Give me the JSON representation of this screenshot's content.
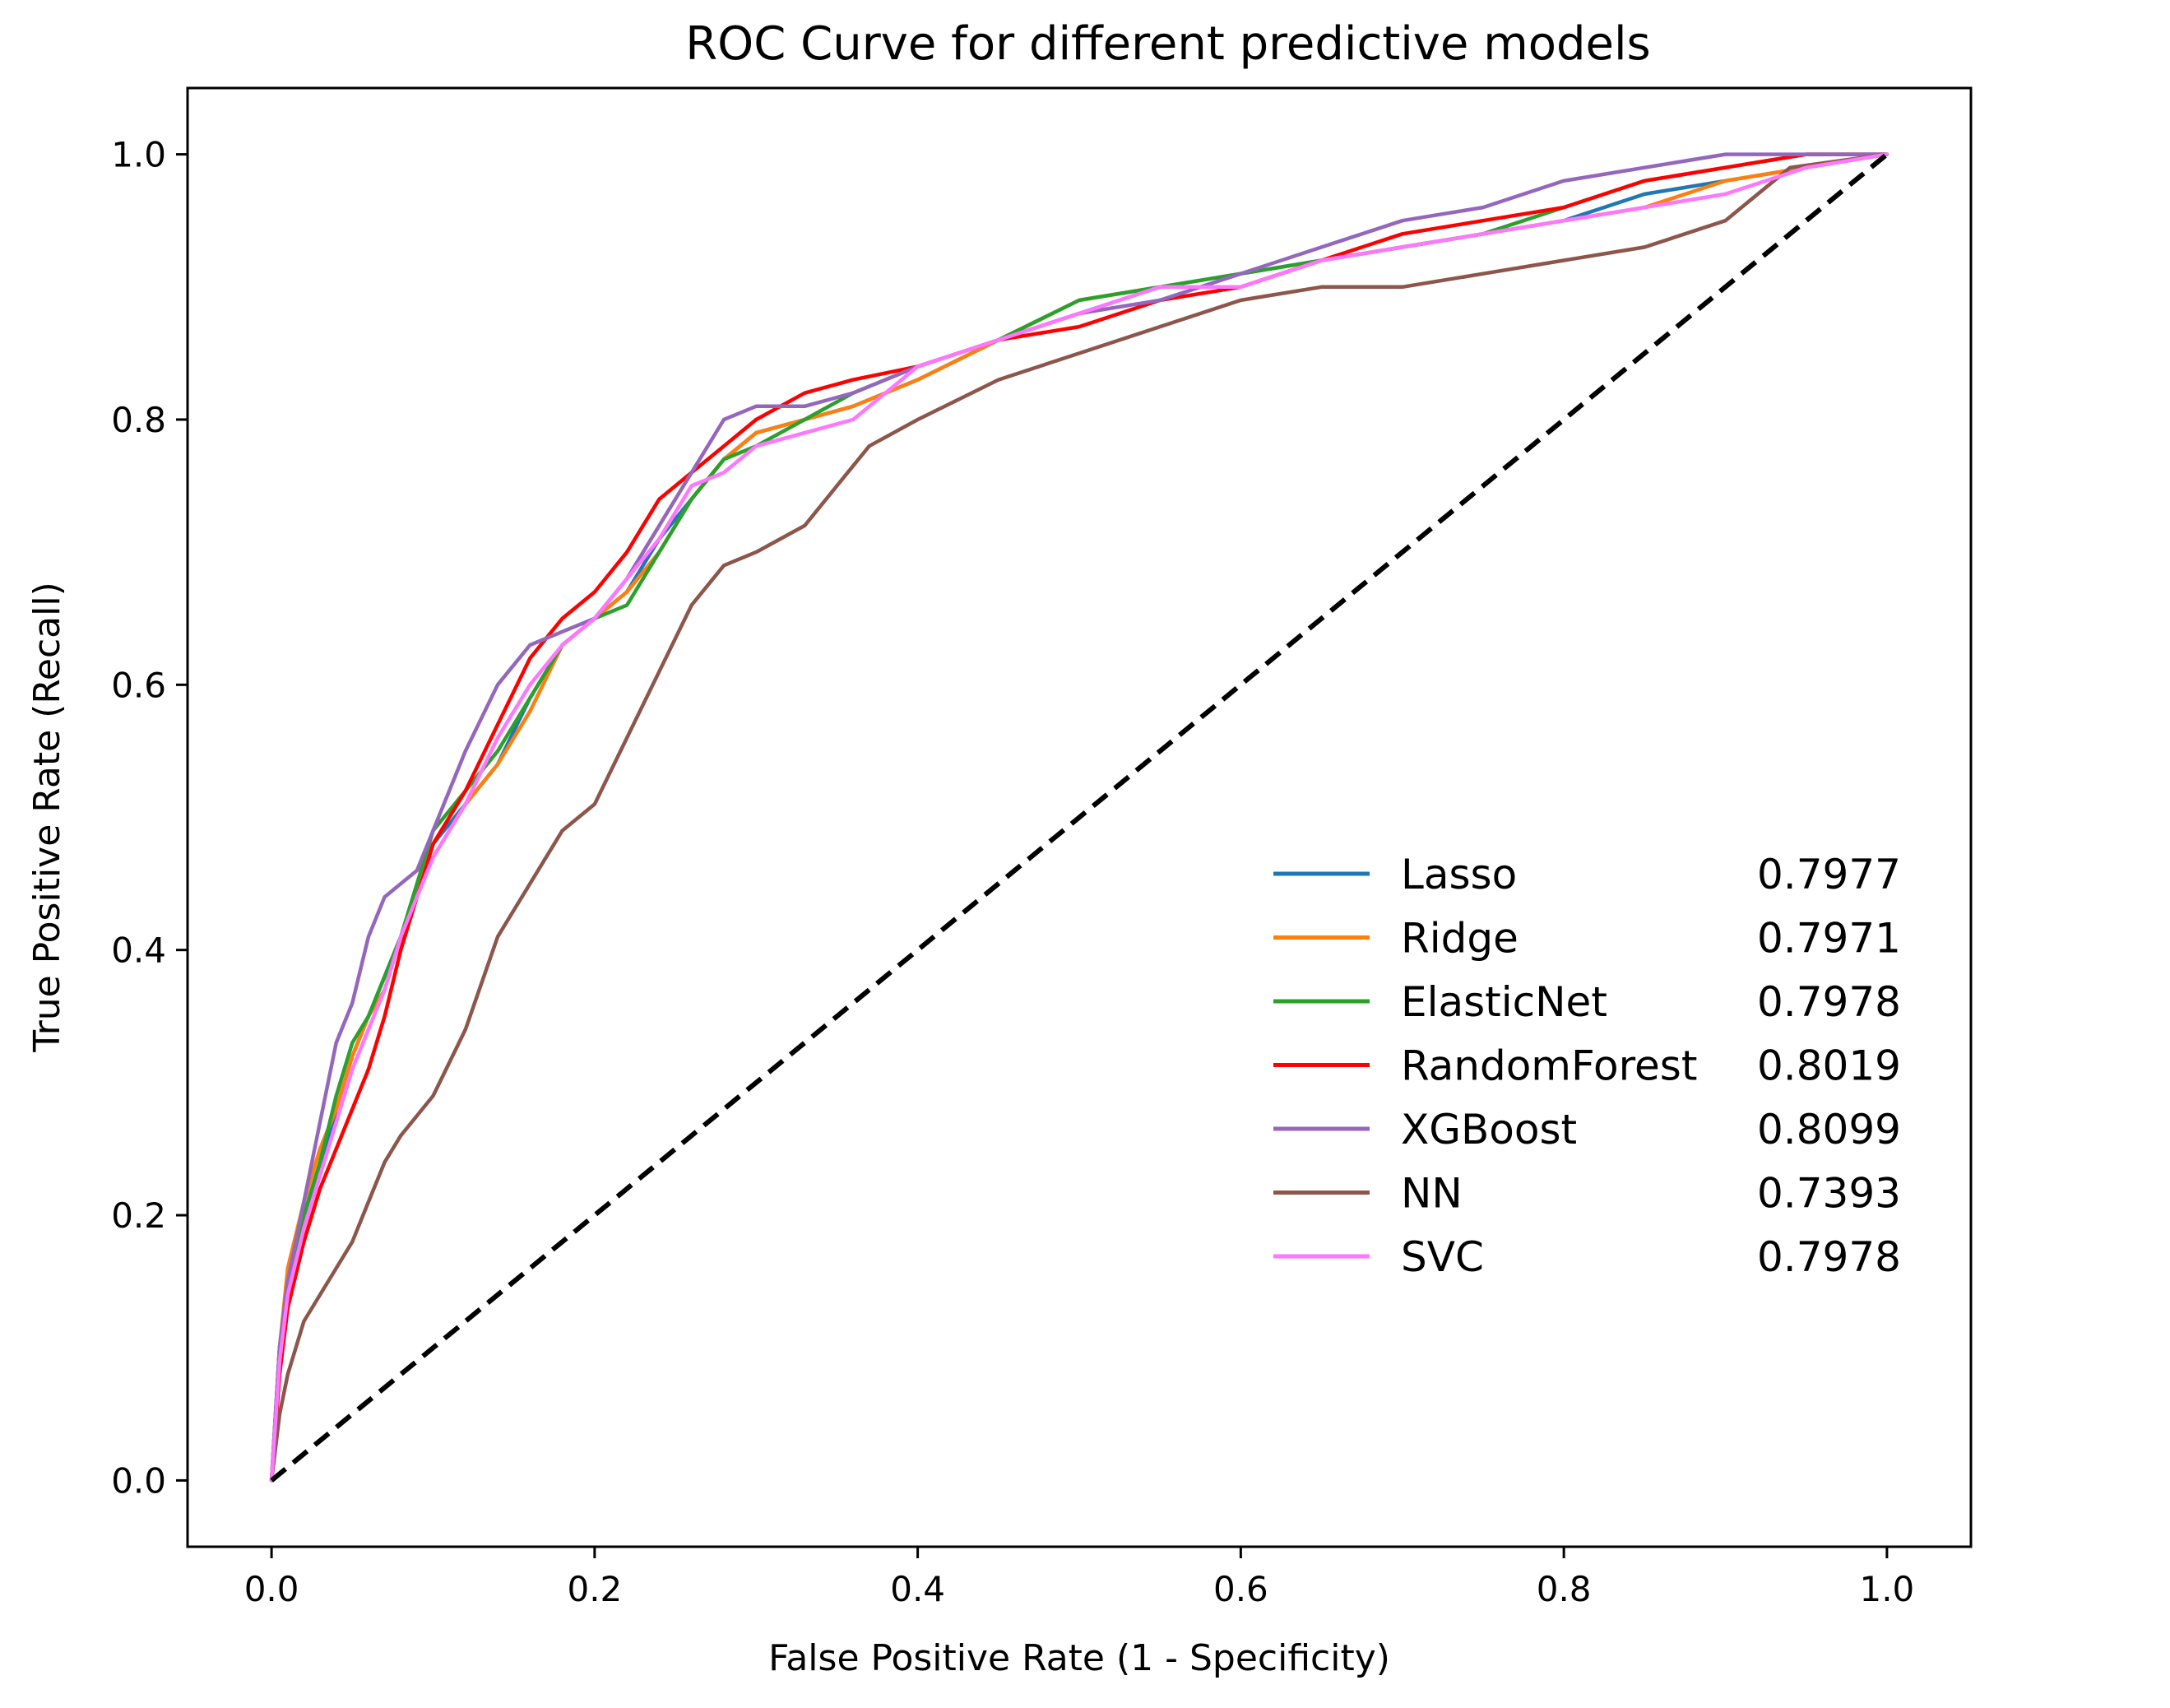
{
  "chart_data": {
    "type": "line",
    "title": "ROC Curve for different predictive models",
    "xlabel": "False Positive Rate (1 - Specificity)",
    "ylabel": "True Positive Rate (Recall)",
    "xlim": [
      -0.052,
      1.052
    ],
    "ylim": [
      -0.05,
      1.05
    ],
    "xticks": [
      "0.0",
      "0.2",
      "0.4",
      "0.6",
      "0.8",
      "1.0"
    ],
    "yticks": [
      "0.0",
      "0.2",
      "0.4",
      "0.6",
      "0.8",
      "1.0"
    ],
    "legend_position": "center-right",
    "baseline": {
      "name": "chance",
      "color": "#000000",
      "style": "dashed",
      "x": [
        0,
        1
      ],
      "y": [
        0,
        1
      ]
    },
    "series": [
      {
        "name": "Lasso",
        "auc": "0.7977",
        "color": "#1f77b4",
        "x": [
          0,
          0.005,
          0.01,
          0.02,
          0.03,
          0.04,
          0.05,
          0.06,
          0.07,
          0.08,
          0.09,
          0.1,
          0.12,
          0.14,
          0.16,
          0.18,
          0.2,
          0.22,
          0.24,
          0.26,
          0.28,
          0.3,
          0.33,
          0.36,
          0.4,
          0.45,
          0.5,
          0.55,
          0.6,
          0.65,
          0.7,
          0.75,
          0.8,
          0.85,
          0.9,
          0.95,
          1.0
        ],
        "y": [
          0,
          0.1,
          0.15,
          0.2,
          0.23,
          0.28,
          0.32,
          0.35,
          0.38,
          0.41,
          0.44,
          0.48,
          0.51,
          0.54,
          0.59,
          0.63,
          0.65,
          0.67,
          0.71,
          0.74,
          0.77,
          0.79,
          0.8,
          0.81,
          0.83,
          0.86,
          0.88,
          0.9,
          0.91,
          0.92,
          0.93,
          0.94,
          0.95,
          0.97,
          0.98,
          0.99,
          1.0
        ]
      },
      {
        "name": "Ridge",
        "auc": "0.7971",
        "color": "#ff7f0e",
        "x": [
          0,
          0.005,
          0.01,
          0.02,
          0.03,
          0.04,
          0.05,
          0.06,
          0.07,
          0.08,
          0.09,
          0.1,
          0.12,
          0.14,
          0.16,
          0.18,
          0.2,
          0.22,
          0.24,
          0.26,
          0.28,
          0.3,
          0.33,
          0.36,
          0.4,
          0.45,
          0.5,
          0.55,
          0.6,
          0.65,
          0.7,
          0.75,
          0.8,
          0.85,
          0.9,
          0.95,
          1.0
        ],
        "y": [
          0,
          0.1,
          0.16,
          0.21,
          0.25,
          0.28,
          0.32,
          0.35,
          0.37,
          0.41,
          0.44,
          0.47,
          0.51,
          0.54,
          0.58,
          0.63,
          0.65,
          0.67,
          0.7,
          0.74,
          0.77,
          0.79,
          0.8,
          0.81,
          0.83,
          0.86,
          0.89,
          0.9,
          0.9,
          0.92,
          0.93,
          0.94,
          0.95,
          0.96,
          0.98,
          0.99,
          1.0
        ]
      },
      {
        "name": "ElasticNet",
        "auc": "0.7978",
        "color": "#2ca02c",
        "x": [
          0,
          0.005,
          0.01,
          0.02,
          0.03,
          0.04,
          0.05,
          0.06,
          0.07,
          0.08,
          0.09,
          0.1,
          0.12,
          0.14,
          0.16,
          0.18,
          0.2,
          0.22,
          0.24,
          0.26,
          0.28,
          0.3,
          0.33,
          0.36,
          0.4,
          0.45,
          0.5,
          0.55,
          0.6,
          0.65,
          0.7,
          0.75,
          0.8,
          0.85,
          0.9,
          0.95,
          1.0
        ],
        "y": [
          0,
          0.1,
          0.15,
          0.2,
          0.24,
          0.29,
          0.33,
          0.35,
          0.38,
          0.41,
          0.45,
          0.49,
          0.52,
          0.55,
          0.59,
          0.63,
          0.65,
          0.66,
          0.7,
          0.74,
          0.77,
          0.78,
          0.8,
          0.82,
          0.84,
          0.86,
          0.89,
          0.9,
          0.91,
          0.92,
          0.93,
          0.94,
          0.96,
          0.98,
          0.99,
          1.0,
          1.0
        ]
      },
      {
        "name": "RandomForest",
        "auc": "0.8019",
        "color": "#ff0000",
        "x": [
          0,
          0.005,
          0.01,
          0.02,
          0.03,
          0.04,
          0.05,
          0.06,
          0.07,
          0.08,
          0.09,
          0.1,
          0.12,
          0.14,
          0.16,
          0.18,
          0.2,
          0.22,
          0.24,
          0.26,
          0.28,
          0.3,
          0.33,
          0.36,
          0.4,
          0.45,
          0.5,
          0.55,
          0.6,
          0.65,
          0.7,
          0.75,
          0.8,
          0.85,
          0.9,
          0.95,
          1.0
        ],
        "y": [
          0,
          0.08,
          0.13,
          0.18,
          0.22,
          0.25,
          0.28,
          0.31,
          0.35,
          0.4,
          0.44,
          0.48,
          0.52,
          0.57,
          0.62,
          0.65,
          0.67,
          0.7,
          0.74,
          0.76,
          0.78,
          0.8,
          0.82,
          0.83,
          0.84,
          0.86,
          0.87,
          0.89,
          0.9,
          0.92,
          0.94,
          0.95,
          0.96,
          0.98,
          0.99,
          1.0,
          1.0
        ]
      },
      {
        "name": "XGBoost",
        "auc": "0.8099",
        "color": "#9467bd",
        "x": [
          0,
          0.005,
          0.01,
          0.02,
          0.03,
          0.04,
          0.05,
          0.06,
          0.07,
          0.08,
          0.09,
          0.1,
          0.12,
          0.14,
          0.16,
          0.18,
          0.2,
          0.22,
          0.24,
          0.26,
          0.28,
          0.3,
          0.33,
          0.36,
          0.4,
          0.45,
          0.5,
          0.55,
          0.6,
          0.65,
          0.7,
          0.75,
          0.8,
          0.85,
          0.9,
          0.95,
          1.0
        ],
        "y": [
          0,
          0.1,
          0.15,
          0.21,
          0.27,
          0.33,
          0.36,
          0.41,
          0.44,
          0.45,
          0.46,
          0.49,
          0.55,
          0.6,
          0.63,
          0.64,
          0.65,
          0.68,
          0.72,
          0.76,
          0.8,
          0.81,
          0.81,
          0.82,
          0.84,
          0.86,
          0.88,
          0.89,
          0.91,
          0.93,
          0.95,
          0.96,
          0.98,
          0.99,
          1.0,
          1.0,
          1.0
        ]
      },
      {
        "name": "NN",
        "auc": "0.7393",
        "color": "#8c564b",
        "x": [
          0,
          0.005,
          0.01,
          0.02,
          0.03,
          0.04,
          0.05,
          0.06,
          0.07,
          0.08,
          0.1,
          0.12,
          0.14,
          0.16,
          0.18,
          0.2,
          0.22,
          0.24,
          0.26,
          0.28,
          0.3,
          0.33,
          0.35,
          0.37,
          0.4,
          0.45,
          0.5,
          0.55,
          0.6,
          0.65,
          0.7,
          0.75,
          0.8,
          0.85,
          0.9,
          0.94,
          1.0
        ],
        "y": [
          0,
          0.05,
          0.08,
          0.12,
          0.14,
          0.16,
          0.18,
          0.21,
          0.24,
          0.26,
          0.29,
          0.34,
          0.41,
          0.45,
          0.49,
          0.51,
          0.56,
          0.61,
          0.66,
          0.69,
          0.7,
          0.72,
          0.75,
          0.78,
          0.8,
          0.83,
          0.85,
          0.87,
          0.89,
          0.9,
          0.9,
          0.91,
          0.92,
          0.93,
          0.95,
          0.99,
          1.0
        ]
      },
      {
        "name": "SVC",
        "auc": "0.7978",
        "color": "#ff77ff",
        "x": [
          0,
          0.005,
          0.01,
          0.02,
          0.03,
          0.04,
          0.05,
          0.06,
          0.07,
          0.08,
          0.09,
          0.1,
          0.12,
          0.14,
          0.16,
          0.18,
          0.2,
          0.22,
          0.24,
          0.26,
          0.28,
          0.3,
          0.33,
          0.36,
          0.4,
          0.45,
          0.5,
          0.55,
          0.6,
          0.65,
          0.7,
          0.75,
          0.8,
          0.85,
          0.9,
          0.95,
          1.0
        ],
        "y": [
          0,
          0.09,
          0.14,
          0.19,
          0.23,
          0.27,
          0.31,
          0.34,
          0.37,
          0.41,
          0.44,
          0.47,
          0.51,
          0.56,
          0.6,
          0.63,
          0.65,
          0.68,
          0.71,
          0.75,
          0.76,
          0.78,
          0.79,
          0.8,
          0.84,
          0.86,
          0.88,
          0.9,
          0.9,
          0.92,
          0.93,
          0.94,
          0.95,
          0.96,
          0.97,
          0.99,
          1.0
        ]
      }
    ]
  }
}
